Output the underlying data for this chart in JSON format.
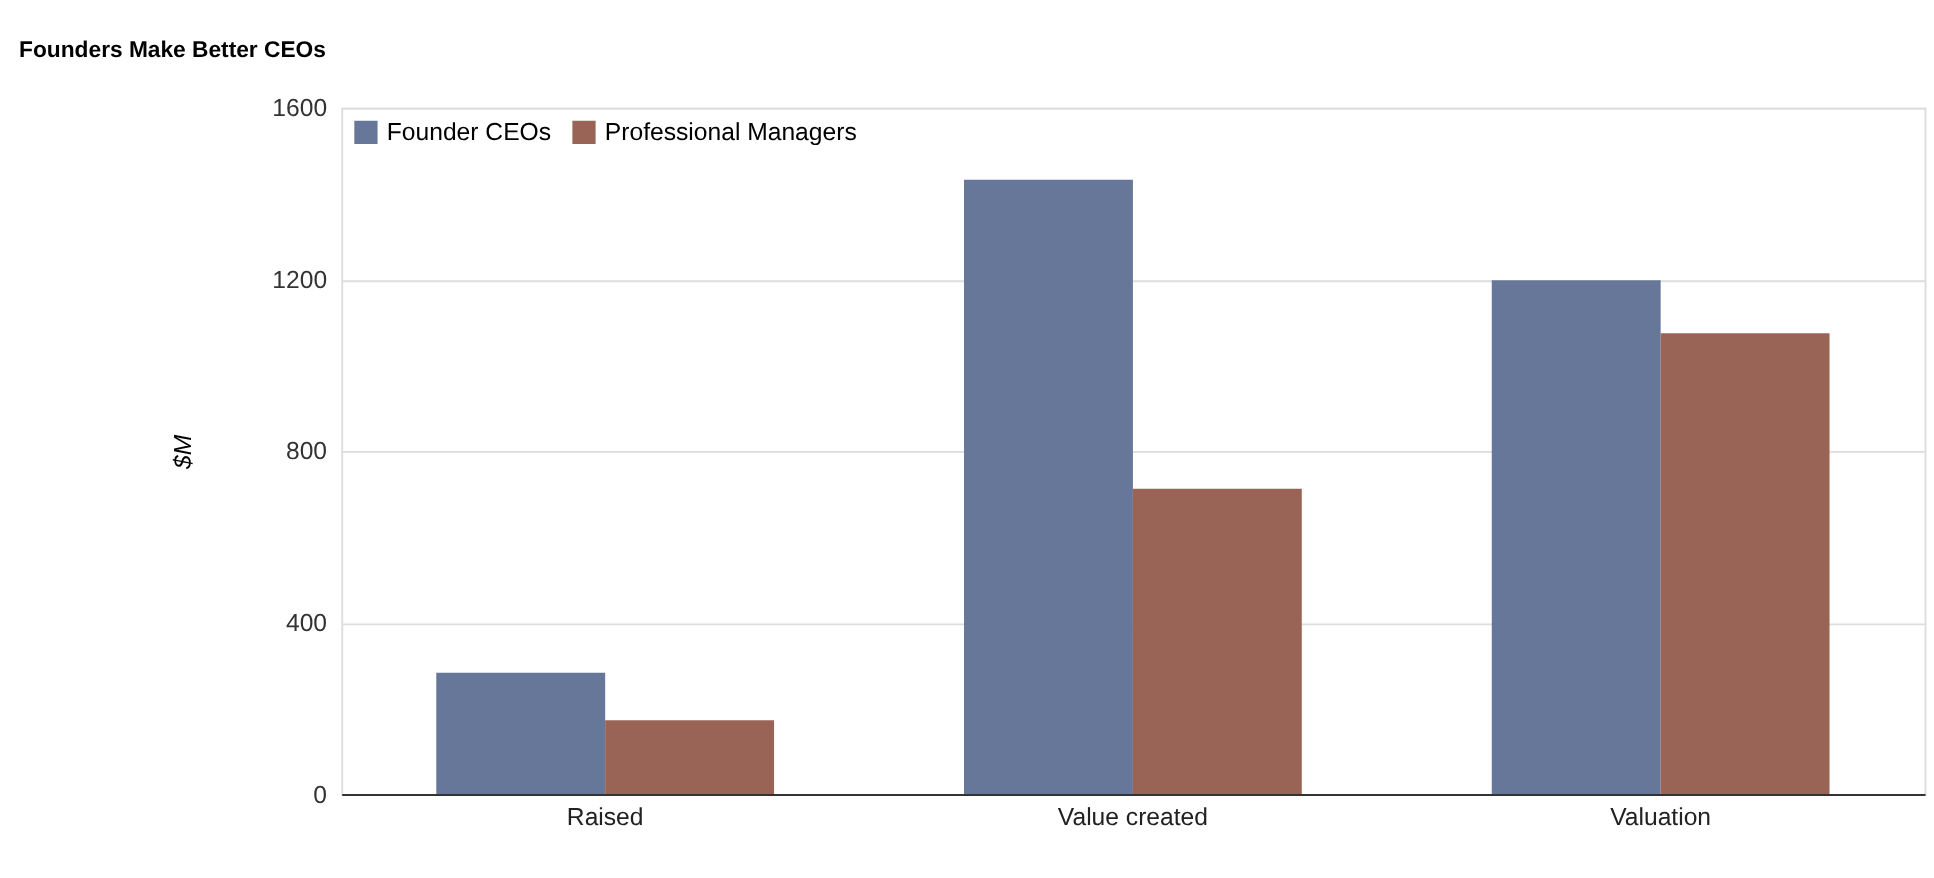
{
  "chart_data": {
    "type": "bar",
    "title": "Founders Make Better CEOs",
    "ylabel": "$M",
    "categories": [
      "Raised",
      "Value created",
      "Valuation"
    ],
    "series": [
      {
        "name": "Founder CEOs",
        "color": "#667799",
        "values": [
          283,
          1432,
          1198
        ]
      },
      {
        "name": "Professional Managers",
        "color": "#996355",
        "values": [
          172,
          712,
          1074
        ]
      }
    ],
    "ylim": [
      0,
      1600
    ],
    "yticks": [
      0,
      400,
      800,
      1200,
      1600
    ],
    "grid": "y",
    "legend": "top left"
  }
}
